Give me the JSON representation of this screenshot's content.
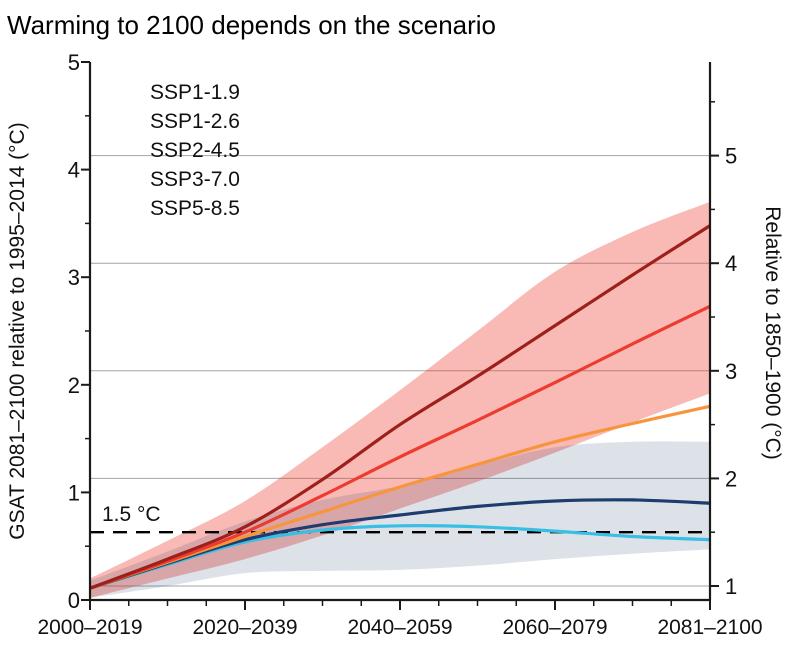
{
  "chart_data": {
    "type": "line",
    "title": "Warming to 2100 depends on the scenario",
    "axes": {
      "left_label": "GSAT 2081–2100 relative to 1995–2014 (°C)",
      "right_label": "Relative to 1850–1900 (°C)",
      "left_range": [
        0,
        5
      ],
      "left_ticks": [
        0,
        1,
        2,
        3,
        4,
        5
      ],
      "left_minor_step": 0.5,
      "right_ticks": [
        1,
        2,
        3,
        4,
        5
      ],
      "right_axis_offset": 0.87,
      "x_tick_labels": [
        "2000–2019",
        "2020–2039",
        "2040–2059",
        "2060–2079",
        "2081–2100"
      ],
      "x_major_years": [
        2010,
        2030,
        2050,
        2070,
        2090
      ],
      "x_minor_step_years": 5,
      "grid": "horizontal light-gray lines at right-axis integer values",
      "grid_color": "#a3a3a3",
      "axis_color": "#1a1a1a"
    },
    "x_years": [
      2010,
      2020,
      2030,
      2040,
      2050,
      2060,
      2070,
      2080,
      2090
    ],
    "series": [
      {
        "name": "SSP1-1.9",
        "color": "#38bfe3",
        "values": [
          0.11,
          0.33,
          0.54,
          0.65,
          0.69,
          0.68,
          0.64,
          0.59,
          0.56
        ]
      },
      {
        "name": "SSP1-2.6",
        "color": "#1e3d6e",
        "values": [
          0.11,
          0.34,
          0.56,
          0.7,
          0.79,
          0.87,
          0.92,
          0.93,
          0.9
        ]
      },
      {
        "name": "SSP2-4.5",
        "color": "#f8953c",
        "values": [
          0.11,
          0.35,
          0.59,
          0.82,
          1.05,
          1.26,
          1.47,
          1.64,
          1.8
        ]
      },
      {
        "name": "SSP3-7.0",
        "color": "#ed3c2f",
        "values": [
          0.11,
          0.36,
          0.63,
          0.97,
          1.33,
          1.67,
          2.02,
          2.38,
          2.73
        ]
      },
      {
        "name": "SSP5-8.5",
        "color": "#9d201b",
        "values": [
          0.11,
          0.38,
          0.68,
          1.12,
          1.63,
          2.08,
          2.55,
          3.02,
          3.48
        ]
      }
    ],
    "bands": [
      {
        "series": "SSP3-7.0",
        "fill": "rgba(237,60,47,0.36)",
        "low": [
          0.02,
          0.2,
          0.38,
          0.6,
          0.85,
          1.1,
          1.37,
          1.65,
          1.92
        ],
        "high": [
          0.2,
          0.55,
          0.92,
          1.42,
          1.95,
          2.5,
          3.05,
          3.42,
          3.7
        ]
      },
      {
        "series": "SSP1-2.6",
        "fill": "rgba(30,61,110,0.15)",
        "low": [
          0.02,
          0.13,
          0.25,
          0.27,
          0.28,
          0.32,
          0.38,
          0.43,
          0.47
        ],
        "high": [
          0.18,
          0.45,
          0.73,
          0.93,
          1.06,
          1.25,
          1.42,
          1.47,
          1.47
        ]
      }
    ],
    "threshold_line": {
      "label": "1.5 °C",
      "right_value": 1.5,
      "style": "black dashed horizontal line"
    },
    "legend": {
      "position": "inside top-left",
      "entries": [
        "SSP1-1.9",
        "SSP1-2.6",
        "SSP2-4.5",
        "SSP3-7.0",
        "SSP5-8.5"
      ]
    }
  }
}
